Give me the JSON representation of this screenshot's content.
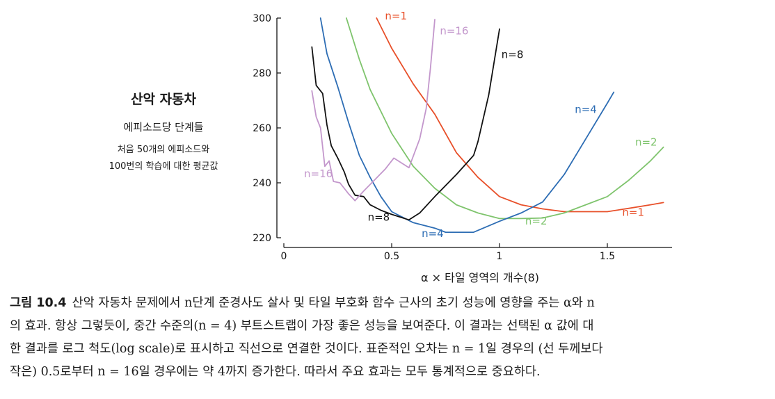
{
  "chart_data": {
    "type": "line",
    "ylabel": {
      "title": "산악 자동차",
      "line1": "에피소드당 단계들",
      "line2": "처음 50개의 에피소드와",
      "line3": "100번의 학습에 대한 평균값"
    },
    "xlabel": "α × 타일 영역의 개수(8)",
    "xlim": [
      0,
      1.8
    ],
    "ylim": [
      220,
      300
    ],
    "xticks": [
      "0",
      "0.5",
      "1",
      "1.5"
    ],
    "xtick_values": [
      0,
      0.5,
      1,
      1.5
    ],
    "yticks": [
      "220",
      "240",
      "260",
      "280",
      "300"
    ],
    "ytick_values": [
      220,
      240,
      260,
      280,
      300
    ],
    "series": [
      {
        "name": "n=1",
        "color": "#e8502a",
        "label_top": {
          "text": "n=1",
          "x": 0.52,
          "y": 299.5
        },
        "label_bottom": {
          "text": "n=1",
          "x": 1.62,
          "y": 228
        },
        "points": [
          [
            0.43,
            300
          ],
          [
            0.5,
            289
          ],
          [
            0.6,
            276
          ],
          [
            0.7,
            265
          ],
          [
            0.8,
            251
          ],
          [
            0.9,
            242
          ],
          [
            1.0,
            235
          ],
          [
            1.1,
            232
          ],
          [
            1.2,
            230.5
          ],
          [
            1.3,
            229.5
          ],
          [
            1.4,
            229.5
          ],
          [
            1.5,
            229.5
          ],
          [
            1.6,
            230.7
          ],
          [
            1.7,
            232
          ],
          [
            1.76,
            232.8
          ]
        ]
      },
      {
        "name": "n=2",
        "color": "#7fc46d",
        "label_top": {
          "text": "n=2",
          "x": 1.68,
          "y": 253.5
        },
        "label_bottom": {
          "text": "n=2",
          "x": 1.17,
          "y": 224.8
        },
        "points": [
          [
            0.29,
            300
          ],
          [
            0.35,
            285
          ],
          [
            0.4,
            274
          ],
          [
            0.5,
            258
          ],
          [
            0.6,
            246
          ],
          [
            0.7,
            238
          ],
          [
            0.8,
            232
          ],
          [
            0.9,
            229
          ],
          [
            1.0,
            227
          ],
          [
            1.1,
            227
          ],
          [
            1.2,
            227.2
          ],
          [
            1.3,
            229
          ],
          [
            1.4,
            232
          ],
          [
            1.5,
            235
          ],
          [
            1.6,
            241
          ],
          [
            1.7,
            248
          ],
          [
            1.76,
            253
          ]
        ]
      },
      {
        "name": "n=4",
        "color": "#2d6db4",
        "label_top": {
          "text": "n=4",
          "x": 1.4,
          "y": 265.5
        },
        "label_bottom": {
          "text": "n=4",
          "x": 0.69,
          "y": 220.2
        },
        "points": [
          [
            0.17,
            300
          ],
          [
            0.2,
            287
          ],
          [
            0.25,
            275
          ],
          [
            0.3,
            262
          ],
          [
            0.35,
            250
          ],
          [
            0.4,
            242
          ],
          [
            0.45,
            235
          ],
          [
            0.5,
            229.5
          ],
          [
            0.6,
            225.5
          ],
          [
            0.7,
            223.5
          ],
          [
            0.75,
            222
          ],
          [
            0.88,
            222
          ],
          [
            1.0,
            226
          ],
          [
            1.1,
            229
          ],
          [
            1.2,
            233
          ],
          [
            1.3,
            243
          ],
          [
            1.4,
            256
          ],
          [
            1.5,
            269
          ],
          [
            1.53,
            273
          ]
        ]
      },
      {
        "name": "n=8",
        "color": "#111111",
        "label_top": {
          "text": "n=8",
          "x": 1.06,
          "y": 285.5
        },
        "label_bottom": {
          "text": "n=8",
          "x": 0.44,
          "y": 226.2
        },
        "points": [
          [
            0.13,
            289.5
          ],
          [
            0.15,
            275.5
          ],
          [
            0.18,
            272.5
          ],
          [
            0.2,
            261
          ],
          [
            0.22,
            253.5
          ],
          [
            0.25,
            249
          ],
          [
            0.28,
            244
          ],
          [
            0.3,
            239.5
          ],
          [
            0.33,
            235.5
          ],
          [
            0.37,
            235
          ],
          [
            0.4,
            232
          ],
          [
            0.45,
            230
          ],
          [
            0.5,
            228.5
          ],
          [
            0.58,
            226.5
          ],
          [
            0.63,
            229
          ],
          [
            0.7,
            235
          ],
          [
            0.8,
            243
          ],
          [
            0.88,
            250
          ],
          [
            0.9,
            255
          ],
          [
            0.95,
            272
          ],
          [
            1.0,
            296
          ]
        ]
      },
      {
        "name": "n=16",
        "color": "#c397cc",
        "label_top": {
          "text": "n=16",
          "x": 0.79,
          "y": 294
        },
        "label_bottom": {
          "text": "n=16",
          "x": 0.16,
          "y": 242
        },
        "points": [
          [
            0.13,
            273.5
          ],
          [
            0.15,
            264
          ],
          [
            0.17,
            260
          ],
          [
            0.19,
            246
          ],
          [
            0.21,
            248
          ],
          [
            0.23,
            240.5
          ],
          [
            0.26,
            240
          ],
          [
            0.3,
            236
          ],
          [
            0.33,
            233.5
          ],
          [
            0.37,
            237
          ],
          [
            0.42,
            241
          ],
          [
            0.47,
            245
          ],
          [
            0.51,
            249
          ],
          [
            0.58,
            245.5
          ],
          [
            0.63,
            256
          ],
          [
            0.66,
            267
          ],
          [
            0.68,
            282
          ],
          [
            0.7,
            299.5
          ]
        ]
      }
    ]
  },
  "caption": {
    "figure": "그림 10.4",
    "lines": [
      "산악 자동차 문제에서 n단계 준경사도 살사 및 타일 부호화 함수 근사의 초기 성능에 영향을 주는 α와 n",
      "의 효과. 항상 그렇듯이, 중간 수준의(n = 4) 부트스트랩이 가장 좋은 성능을 보여준다. 이 결과는 선택된 α 값에 대",
      "한 결과를 로그 척도(log scale)로 표시하고 직선으로 연결한 것이다. 표준적인 오차는 n = 1일 경우의 (선 두께보다",
      "작은) 0.5로부터 n = 16일 경우에는 약 4까지 증가한다. 따라서 주요 효과는 모두 통계적으로 중요하다."
    ]
  }
}
